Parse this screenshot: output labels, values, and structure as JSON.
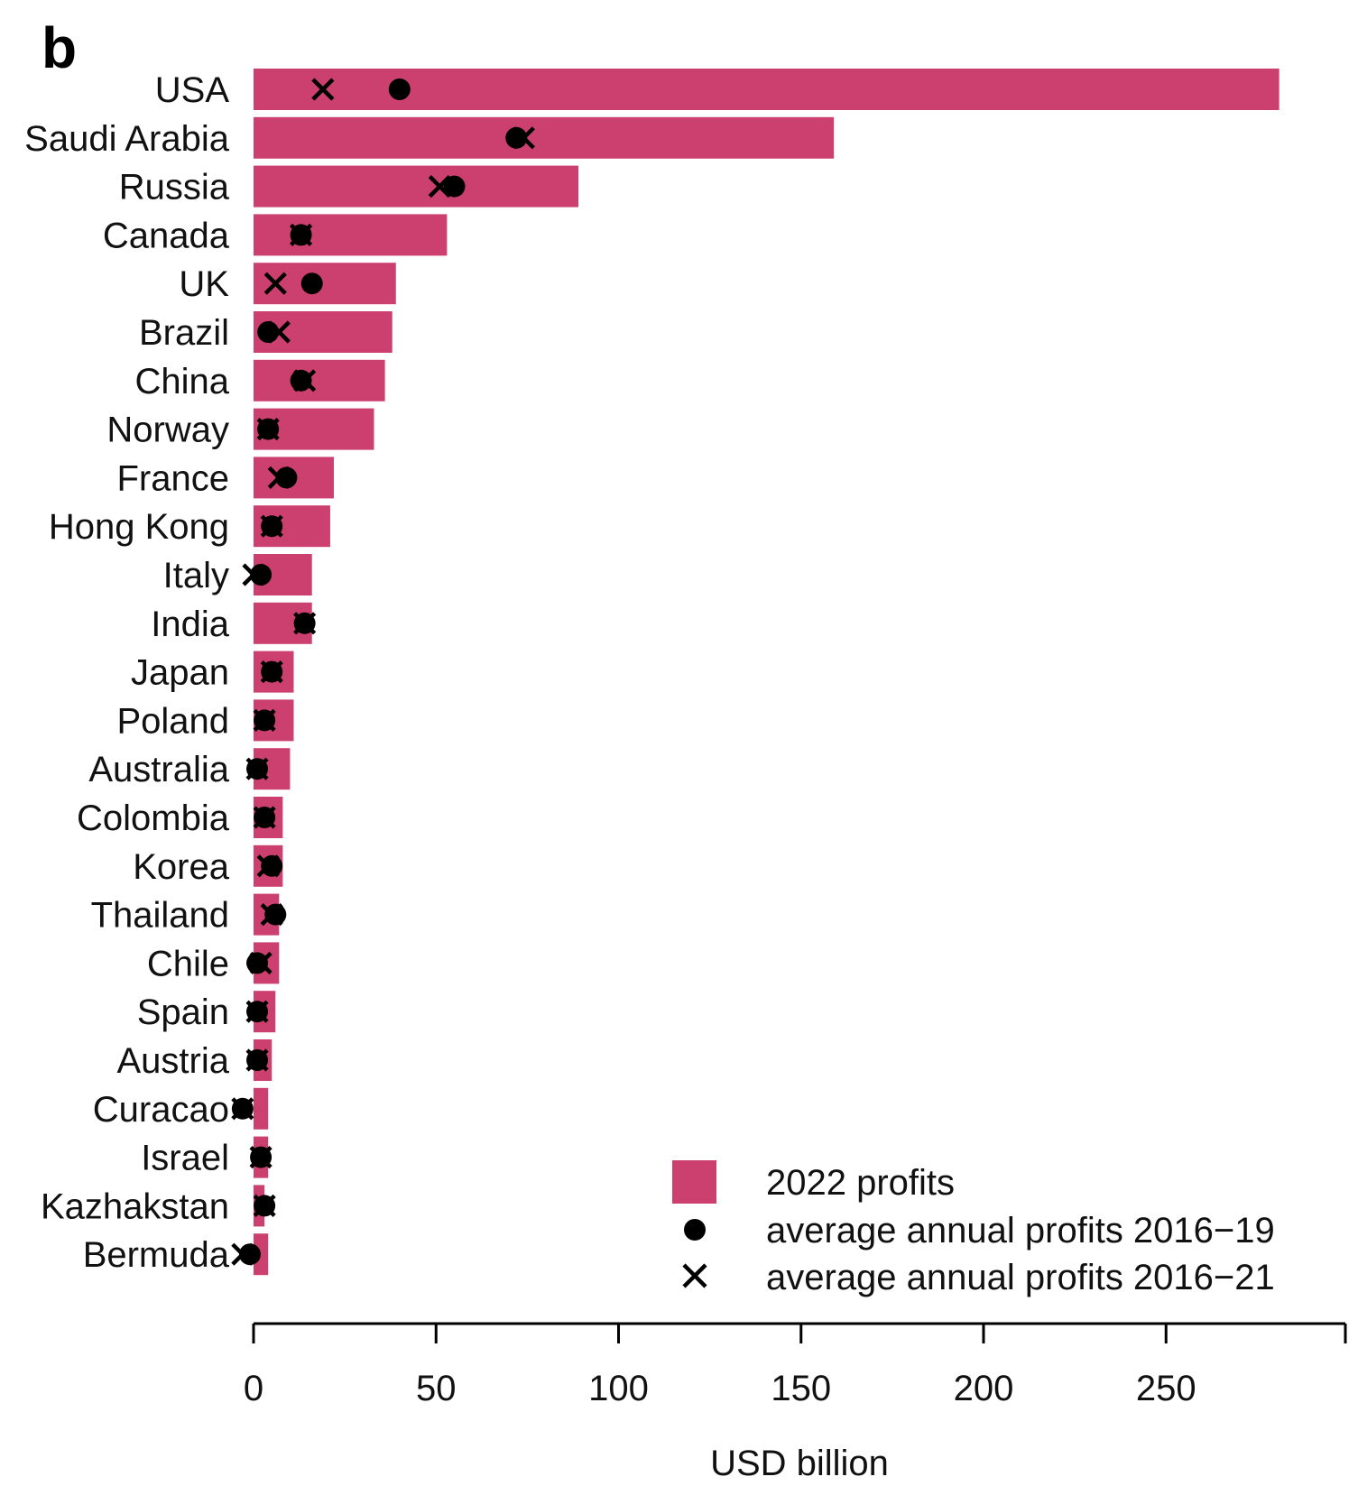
{
  "panel_label": "b",
  "colors": {
    "bar": "#CC4070",
    "marker": "#000000"
  },
  "legend": {
    "bar_label": "2022 profits",
    "dot_label": "average annual profits 2016−19",
    "cross_label": "average annual profits 2016−21"
  },
  "chart_data": {
    "type": "bar",
    "orientation": "horizontal",
    "categories": [
      "USA",
      "Saudi Arabia",
      "Russia",
      "Canada",
      "UK",
      "Brazil",
      "China",
      "Norway",
      "France",
      "Hong Kong",
      "Italy",
      "India",
      "Japan",
      "Poland",
      "Australia",
      "Colombia",
      "Korea",
      "Thailand",
      "Chile",
      "Spain",
      "Austria",
      "Curacao",
      "Israel",
      "Kazhakstan",
      "Bermuda"
    ],
    "series": [
      {
        "name": "2022 profits",
        "type": "bar",
        "values": [
          281,
          159,
          89,
          53,
          39,
          38,
          36,
          33,
          22,
          21,
          16,
          16,
          11,
          11,
          10,
          8,
          8,
          7,
          7,
          6,
          5,
          4,
          4,
          3,
          4
        ]
      },
      {
        "name": "average annual profits 2016−19",
        "type": "point",
        "marker": "dot",
        "values": [
          40,
          72,
          55,
          13,
          16,
          4,
          13,
          4,
          9,
          5,
          2,
          14,
          5,
          3,
          1,
          3,
          5,
          6,
          1,
          1,
          1,
          -3,
          2,
          3,
          -1
        ]
      },
      {
        "name": "average annual profits 2016−21",
        "type": "point",
        "marker": "cross",
        "values": [
          19,
          74,
          51,
          13,
          6,
          7,
          14,
          4,
          7,
          5,
          0,
          14,
          5,
          3,
          1,
          3,
          4,
          5,
          2,
          1,
          1,
          -3,
          2,
          3,
          -3
        ]
      }
    ],
    "xlabel": "USD billion",
    "xticks": [
      0,
      50,
      100,
      150,
      200,
      250
    ],
    "xtick_labels": [
      "0",
      "50",
      "100",
      "150",
      "200",
      "250"
    ],
    "xlim": [
      0,
      300
    ],
    "grid": false,
    "legend_position": "bottom-right"
  }
}
